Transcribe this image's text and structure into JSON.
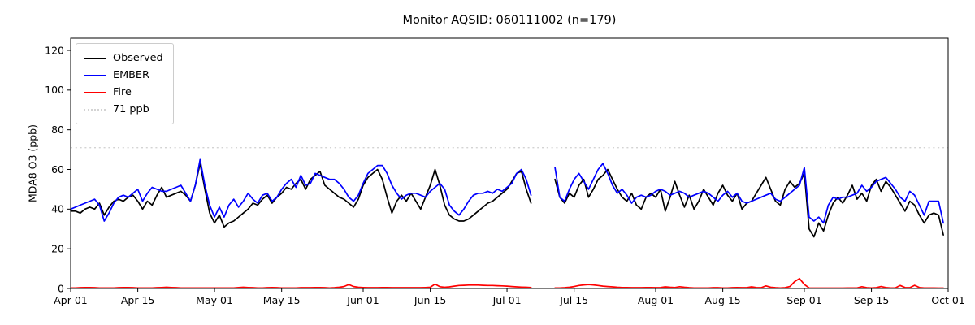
{
  "figure": {
    "title": "Monitor AQSID: 060111002 (n=179)",
    "ylabel": "MDA8 O3 (ppb)"
  },
  "legend": {
    "position": "upper left",
    "items": [
      {
        "label": "Observed",
        "color": "#000000",
        "style": "solid"
      },
      {
        "label": "EMBER",
        "color": "#0000ff",
        "style": "solid"
      },
      {
        "label": "Fire",
        "color": "#ff0000",
        "style": "solid"
      },
      {
        "label": "71 ppb",
        "color": "#d3d3d3",
        "style": "dotted"
      }
    ]
  },
  "chart_data": {
    "type": "line",
    "title": "Monitor AQSID: 060111002 (n=179)",
    "xlabel": "",
    "ylabel": "MDA8 O3 (ppb)",
    "n_points": 179,
    "grid": false,
    "legend_position": "upper left",
    "ylim": [
      0,
      126
    ],
    "yticks": [
      0,
      20,
      40,
      60,
      80,
      100,
      120
    ],
    "x_axis": {
      "unit": "day index from Apr 01",
      "start_label": "Apr 01",
      "end_label": "Oct 01",
      "total_days": 183,
      "missing_days": [
        "Jul 07",
        "Jul 08",
        "Jul 09",
        "Jul 10"
      ]
    },
    "xticks": [
      {
        "day": 0,
        "label": "Apr 01"
      },
      {
        "day": 14,
        "label": "Apr 15"
      },
      {
        "day": 30,
        "label": "May 01"
      },
      {
        "day": 44,
        "label": "May 15"
      },
      {
        "day": 61,
        "label": "Jun 01"
      },
      {
        "day": 75,
        "label": "Jun 15"
      },
      {
        "day": 91,
        "label": "Jul 01"
      },
      {
        "day": 105,
        "label": "Jul 15"
      },
      {
        "day": 122,
        "label": "Aug 01"
      },
      {
        "day": 136,
        "label": "Aug 15"
      },
      {
        "day": 153,
        "label": "Sep 01"
      },
      {
        "day": 167,
        "label": "Sep 15"
      },
      {
        "day": 183,
        "label": "Oct 01"
      }
    ],
    "threshold": {
      "value": 71,
      "label": "71 ppb",
      "color": "#d3d3d3",
      "style": "dotted"
    },
    "series": [
      {
        "name": "Observed",
        "color": "#000000",
        "values": [
          39,
          39,
          38,
          40,
          41,
          40,
          43,
          37,
          41,
          44,
          45,
          44,
          46,
          47,
          44,
          40,
          44,
          42,
          47,
          51,
          46,
          47,
          48,
          49,
          47,
          44,
          52,
          63,
          50,
          38,
          33,
          37,
          31,
          33,
          34,
          36,
          38,
          40,
          43,
          42,
          45,
          47,
          43,
          46,
          48,
          51,
          50,
          53,
          55,
          50,
          55,
          57,
          59,
          52,
          50,
          48,
          46,
          45,
          43,
          41,
          45,
          52,
          56,
          58,
          60,
          55,
          46,
          38,
          44,
          47,
          44,
          48,
          44,
          40,
          46,
          52,
          60,
          52,
          42,
          37,
          35,
          34,
          34,
          35,
          37,
          39,
          41,
          43,
          44,
          46,
          48,
          50,
          54,
          58,
          59,
          50,
          43,
          null,
          null,
          null,
          null,
          55,
          46,
          43,
          48,
          46,
          52,
          55,
          46,
          50,
          55,
          57,
          60,
          55,
          50,
          46,
          44,
          48,
          42,
          40,
          46,
          48,
          46,
          50,
          39,
          46,
          54,
          47,
          41,
          47,
          40,
          44,
          50,
          46,
          42,
          48,
          52,
          47,
          44,
          48,
          40,
          43,
          44,
          48,
          52,
          56,
          50,
          44,
          42,
          50,
          54,
          51,
          53,
          58,
          30,
          26,
          33,
          29,
          37,
          43,
          46,
          43,
          47,
          52,
          45,
          48,
          44,
          52,
          55,
          49,
          54,
          51,
          47,
          43,
          39,
          44,
          42,
          37,
          33,
          37,
          38,
          37,
          27
        ]
      },
      {
        "name": "EMBER",
        "color": "#0000ff",
        "values": [
          40,
          41,
          42,
          43,
          44,
          45,
          42,
          34,
          38,
          43,
          46,
          47,
          46,
          48,
          50,
          44,
          48,
          51,
          50,
          49,
          49,
          50,
          51,
          52,
          48,
          44,
          52,
          65,
          52,
          42,
          36,
          41,
          36,
          42,
          45,
          41,
          44,
          48,
          45,
          43,
          47,
          48,
          44,
          46,
          50,
          53,
          55,
          51,
          57,
          52,
          53,
          58,
          57,
          56,
          55,
          55,
          53,
          50,
          46,
          44,
          47,
          53,
          58,
          60,
          62,
          62,
          58,
          52,
          48,
          45,
          47,
          48,
          48,
          47,
          46,
          49,
          51,
          53,
          50,
          42,
          39,
          37,
          40,
          44,
          47,
          48,
          48,
          49,
          48,
          50,
          49,
          51,
          53,
          58,
          60,
          55,
          47,
          null,
          null,
          null,
          null,
          61,
          46,
          44,
          50,
          55,
          58,
          54,
          50,
          55,
          60,
          63,
          58,
          52,
          48,
          50,
          47,
          43,
          46,
          47,
          46,
          47,
          49,
          50,
          49,
          47,
          48,
          49,
          48,
          46,
          47,
          48,
          49,
          48,
          46,
          44,
          47,
          49,
          46,
          48,
          44,
          43,
          44,
          45,
          46,
          47,
          48,
          45,
          44,
          46,
          48,
          50,
          52,
          61,
          36,
          34,
          36,
          33,
          42,
          46,
          45,
          46,
          46,
          47,
          48,
          52,
          49,
          51,
          54,
          55,
          56,
          53,
          50,
          46,
          44,
          49,
          47,
          42,
          37,
          44,
          44,
          44,
          33
        ]
      },
      {
        "name": "Fire",
        "color": "#ff0000",
        "values": [
          0.3,
          0.3,
          0.4,
          0.5,
          0.5,
          0.4,
          0.3,
          0.3,
          0.3,
          0.3,
          0.4,
          0.5,
          0.5,
          0.4,
          0.3,
          0.3,
          0.3,
          0.3,
          0.4,
          0.5,
          0.6,
          0.5,
          0.4,
          0.3,
          0.3,
          0.3,
          0.3,
          0.3,
          0.3,
          0.3,
          0.3,
          0.3,
          0.3,
          0.3,
          0.3,
          0.5,
          0.6,
          0.5,
          0.4,
          0.3,
          0.3,
          0.4,
          0.5,
          0.4,
          0.3,
          0.3,
          0.3,
          0.3,
          0.4,
          0.4,
          0.4,
          0.5,
          0.5,
          0.4,
          0.3,
          0.4,
          0.6,
          1.0,
          2.0,
          1.0,
          0.6,
          0.5,
          0.4,
          0.4,
          0.4,
          0.5,
          0.5,
          0.4,
          0.4,
          0.4,
          0.4,
          0.4,
          0.4,
          0.4,
          0.5,
          0.6,
          2.2,
          0.9,
          0.6,
          0.8,
          1.2,
          1.5,
          1.6,
          1.7,
          1.8,
          1.7,
          1.6,
          1.5,
          1.5,
          1.4,
          1.3,
          1.2,
          1.0,
          0.8,
          0.7,
          0.6,
          0.5,
          null,
          null,
          null,
          null,
          0.3,
          0.3,
          0.4,
          0.6,
          1.0,
          1.5,
          1.8,
          2.0,
          1.8,
          1.5,
          1.2,
          1.0,
          0.8,
          0.6,
          0.5,
          0.5,
          0.4,
          0.4,
          0.4,
          0.5,
          0.5,
          0.4,
          0.5,
          0.8,
          0.6,
          0.5,
          0.9,
          0.6,
          0.4,
          0.3,
          0.3,
          0.3,
          0.3,
          0.4,
          0.4,
          0.3,
          0.3,
          0.4,
          0.5,
          0.4,
          0.4,
          0.8,
          0.5,
          0.4,
          1.3,
          0.6,
          0.4,
          0.3,
          0.4,
          1.0,
          3.5,
          5.0,
          2.0,
          0.3,
          0.2,
          0.2,
          0.2,
          0.2,
          0.2,
          0.2,
          0.2,
          0.3,
          0.3,
          0.3,
          0.9,
          0.4,
          0.3,
          0.4,
          1.0,
          0.5,
          0.3,
          0.3,
          1.5,
          0.5,
          0.4,
          1.6,
          0.5,
          0.3,
          0.3,
          0.3,
          0.2,
          0.2
        ]
      }
    ]
  }
}
